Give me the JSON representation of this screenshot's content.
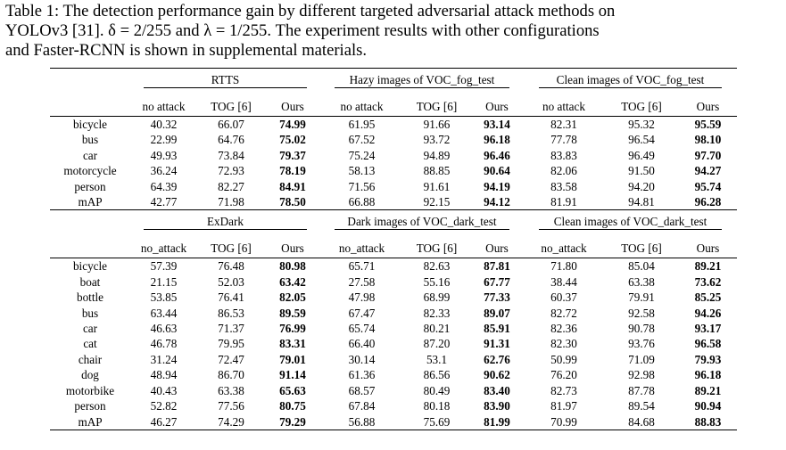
{
  "caption": {
    "line1": "Table 1: The detection performance gain by different targeted adversarial attack methods on",
    "line2": "YOLOv3 [31]. δ = 2/255 and λ = 1/255. The experiment results with other configurations",
    "line3": "and Faster-RCNN is shown in supplemental materials."
  },
  "table1": {
    "groups": [
      "RTTS",
      "Hazy images of VOC_fog_test",
      "Clean images of VOC_fog_test"
    ],
    "columns": [
      "no attack",
      "TOG [6]",
      "Ours",
      "no attack",
      "TOG [6]",
      "Ours",
      "no attack",
      "TOG [6]",
      "Ours"
    ],
    "rows": [
      {
        "label": "bicycle",
        "cells": [
          "40.32",
          "66.07",
          "74.99",
          "61.95",
          "91.66",
          "93.14",
          "82.31",
          "95.32",
          "95.59"
        ]
      },
      {
        "label": "bus",
        "cells": [
          "22.99",
          "64.76",
          "75.02",
          "67.52",
          "93.72",
          "96.18",
          "77.78",
          "96.54",
          "98.10"
        ]
      },
      {
        "label": "car",
        "cells": [
          "49.93",
          "73.84",
          "79.37",
          "75.24",
          "94.89",
          "96.46",
          "83.83",
          "96.49",
          "97.70"
        ]
      },
      {
        "label": "motorcycle",
        "cells": [
          "36.24",
          "72.93",
          "78.19",
          "58.13",
          "88.85",
          "90.64",
          "82.06",
          "91.50",
          "94.27"
        ]
      },
      {
        "label": "person",
        "cells": [
          "64.39",
          "82.27",
          "84.91",
          "71.56",
          "91.61",
          "94.19",
          "83.58",
          "94.20",
          "95.74"
        ]
      },
      {
        "label": "mAP",
        "cells": [
          "42.77",
          "71.98",
          "78.50",
          "66.88",
          "92.15",
          "94.12",
          "81.91",
          "94.81",
          "96.28"
        ]
      }
    ]
  },
  "table2": {
    "groups": [
      "ExDark",
      "Dark images of VOC_dark_test",
      "Clean images of VOC_dark_test"
    ],
    "columns": [
      "no_attack",
      "TOG [6]",
      "Ours",
      "no_attack",
      "TOG [6]",
      "Ours",
      "no_attack",
      "TOG [6]",
      "Ours"
    ],
    "rows": [
      {
        "label": "bicycle",
        "cells": [
          "57.39",
          "76.48",
          "80.98",
          "65.71",
          "82.63",
          "87.81",
          "71.80",
          "85.04",
          "89.21"
        ]
      },
      {
        "label": "boat",
        "cells": [
          "21.15",
          "52.03",
          "63.42",
          "27.58",
          "55.16",
          "67.77",
          "38.44",
          "63.38",
          "73.62"
        ]
      },
      {
        "label": "bottle",
        "cells": [
          "53.85",
          "76.41",
          "82.05",
          "47.98",
          "68.99",
          "77.33",
          "60.37",
          "79.91",
          "85.25"
        ]
      },
      {
        "label": "bus",
        "cells": [
          "63.44",
          "86.53",
          "89.59",
          "67.47",
          "82.33",
          "89.07",
          "82.72",
          "92.58",
          "94.26"
        ]
      },
      {
        "label": "car",
        "cells": [
          "46.63",
          "71.37",
          "76.99",
          "65.74",
          "80.21",
          "85.91",
          "82.36",
          "90.78",
          "93.17"
        ]
      },
      {
        "label": "cat",
        "cells": [
          "46.78",
          "79.95",
          "83.31",
          "66.40",
          "87.20",
          "91.31",
          "82.30",
          "93.76",
          "96.58"
        ]
      },
      {
        "label": "chair",
        "cells": [
          "31.24",
          "72.47",
          "79.01",
          "30.14",
          "53.1",
          "62.76",
          "50.99",
          "71.09",
          "79.93"
        ]
      },
      {
        "label": "dog",
        "cells": [
          "48.94",
          "86.70",
          "91.14",
          "61.36",
          "86.56",
          "90.62",
          "76.20",
          "92.98",
          "96.18"
        ]
      },
      {
        "label": "motorbike",
        "cells": [
          "40.43",
          "63.38",
          "65.63",
          "68.57",
          "80.49",
          "83.40",
          "82.73",
          "87.78",
          "89.21"
        ]
      },
      {
        "label": "person",
        "cells": [
          "52.82",
          "77.56",
          "80.75",
          "67.84",
          "80.18",
          "83.90",
          "81.97",
          "89.54",
          "90.94"
        ]
      },
      {
        "label": "mAP",
        "cells": [
          "46.27",
          "74.29",
          "79.29",
          "56.88",
          "75.69",
          "81.99",
          "70.99",
          "84.68",
          "88.83"
        ]
      }
    ]
  }
}
